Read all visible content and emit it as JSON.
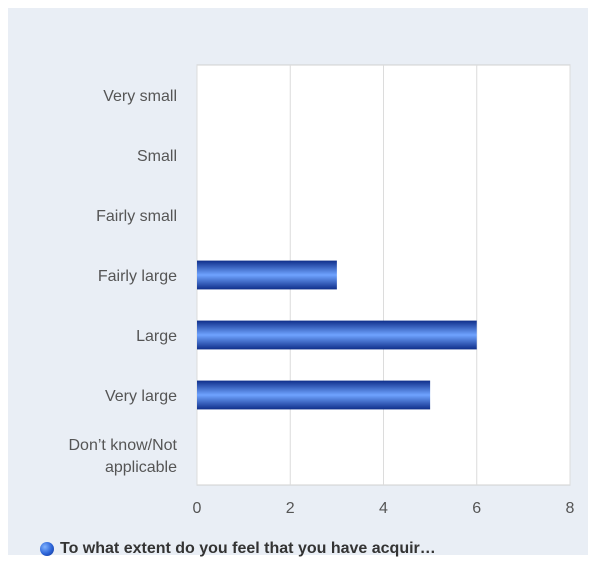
{
  "chart_data": {
    "type": "bar",
    "orientation": "horizontal",
    "categories": [
      "Very small",
      "Small",
      "Fairly small",
      "Fairly large",
      "Large",
      "Very large",
      "Don’t know/Not applicable"
    ],
    "category_lines": [
      [
        "Very small"
      ],
      [
        "Small"
      ],
      [
        "Fairly small"
      ],
      [
        "Fairly large"
      ],
      [
        "Large"
      ],
      [
        "Very large"
      ],
      [
        "Don’t know/Not",
        "applicable"
      ]
    ],
    "series": [
      {
        "name": "To what extent do you feel that you have acquir…",
        "values": [
          0,
          0,
          0,
          3,
          6,
          5,
          0
        ]
      }
    ],
    "xlim": [
      0,
      8
    ],
    "xticks": [
      "0",
      "2",
      "4",
      "6",
      "8"
    ],
    "grid": true,
    "legend": "bottom",
    "colors": {
      "bar_dark": "#0f2f8a",
      "bar_light": "#6fa3ff",
      "background": "#e9eef5",
      "plot": "#ffffff"
    }
  }
}
